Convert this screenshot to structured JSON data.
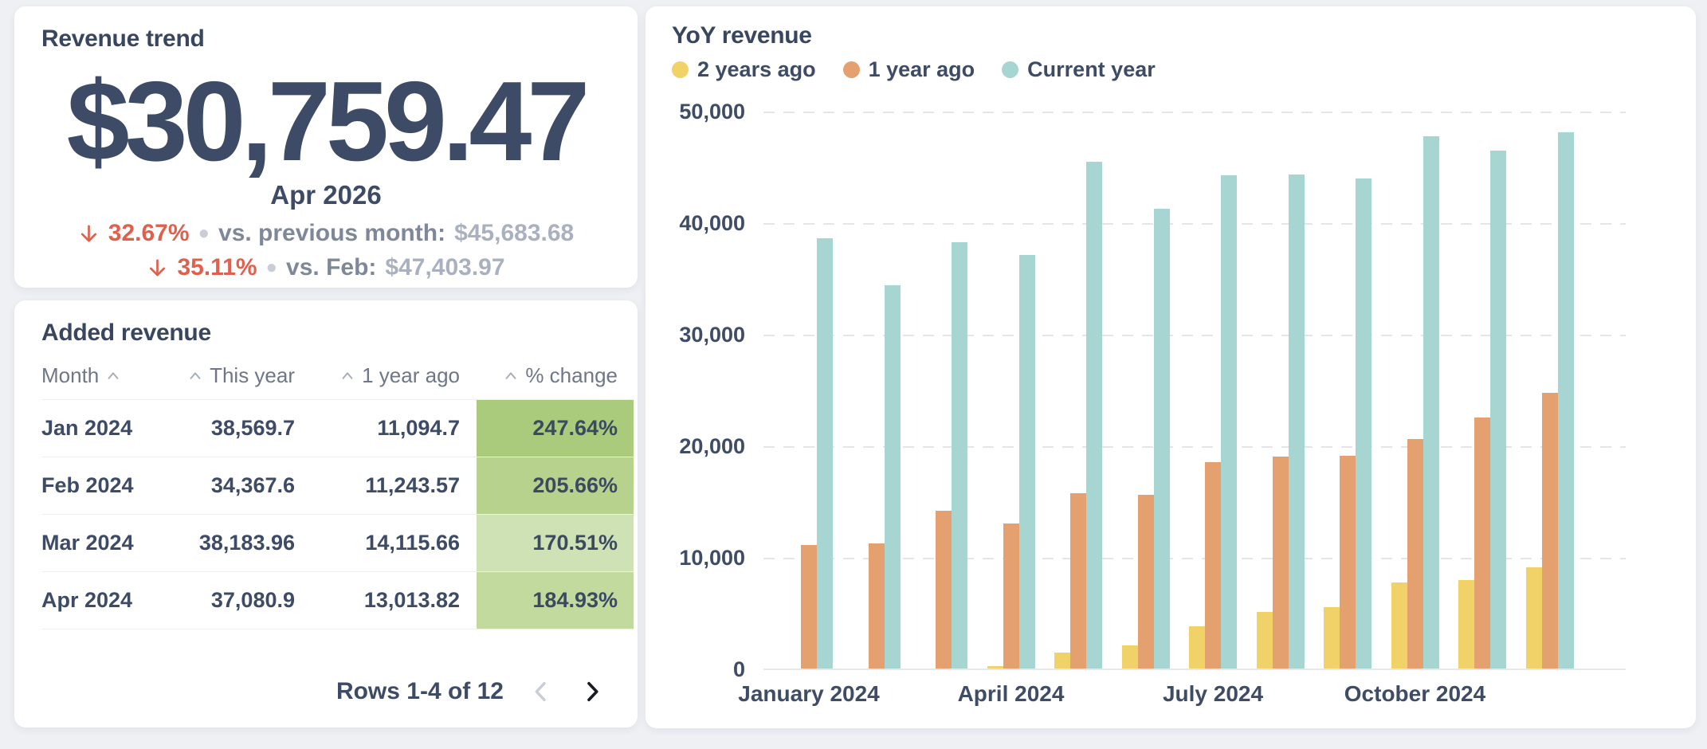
{
  "page_bg": "#eef0f4",
  "revenue_trend": {
    "title": "Revenue trend",
    "amount": "$30,759.47",
    "period": "Apr 2026",
    "down_arrow_color": "#e0604e",
    "comparisons": [
      {
        "direction": "down",
        "pct": "32.67%",
        "label": "vs. previous month:",
        "value": "$45,683.68"
      },
      {
        "direction": "down",
        "pct": "35.11%",
        "label": "vs. Feb:",
        "value": "$47,403.97"
      }
    ]
  },
  "added_revenue": {
    "title": "Added revenue",
    "columns": [
      {
        "label": "Month",
        "sortable": true
      },
      {
        "label": "This year",
        "sortable": true
      },
      {
        "label": "1 year ago",
        "sortable": true
      },
      {
        "label": "% change",
        "sortable": true
      }
    ],
    "rows": [
      {
        "month": "Jan 2024",
        "this_year": "38,569.7",
        "one_year_ago": "11,094.7",
        "pct_change": "247.64%",
        "pct_bg": "#a9cb7b"
      },
      {
        "month": "Feb 2024",
        "this_year": "34,367.6",
        "one_year_ago": "11,243.57",
        "pct_change": "205.66%",
        "pct_bg": "#b6d28d"
      },
      {
        "month": "Mar 2024",
        "this_year": "38,183.96",
        "one_year_ago": "14,115.66",
        "pct_change": "170.51%",
        "pct_bg": "#cfe2b5"
      },
      {
        "month": "Apr 2024",
        "this_year": "37,080.9",
        "one_year_ago": "13,013.82",
        "pct_change": "184.93%",
        "pct_bg": "#c3da9f"
      }
    ],
    "pagination": {
      "label": "Rows 1-4 of 12",
      "prev_enabled": false,
      "next_enabled": true,
      "prev_color": "#c9cdd5",
      "next_color": "#181b22"
    }
  },
  "chart_data": {
    "type": "bar",
    "title": "YoY revenue",
    "categories": [
      "Jan 2024",
      "Feb 2024",
      "Mar 2024",
      "Apr 2024",
      "May 2024",
      "Jun 2024",
      "Jul 2024",
      "Aug 2024",
      "Sep 2024",
      "Oct 2024",
      "Nov 2024",
      "Dec 2024"
    ],
    "series": [
      {
        "name": "2 years ago",
        "color": "#f0d269",
        "values": [
          0,
          0,
          0,
          250,
          1400,
          2100,
          3800,
          5100,
          5500,
          7700,
          7900,
          9100
        ]
      },
      {
        "name": "1 year ago",
        "color": "#e4a16f",
        "values": [
          11094.7,
          11243.57,
          14115.66,
          13013.82,
          15700,
          15600,
          18500,
          19000,
          19100,
          20600,
          22500,
          24700
        ]
      },
      {
        "name": "Current year",
        "color": "#a7d5d1",
        "values": [
          38569.7,
          34367.6,
          38183.96,
          37080.9,
          45400,
          41200,
          44200,
          44300,
          43900,
          47700,
          46400,
          48100
        ]
      }
    ],
    "ylim": [
      0,
      50000
    ],
    "yticks": [
      0,
      10000,
      20000,
      30000,
      40000,
      50000
    ],
    "x_ticks": [
      {
        "index": 0,
        "label": "January 2024"
      },
      {
        "index": 3,
        "label": "April 2024"
      },
      {
        "index": 6,
        "label": "July 2024"
      },
      {
        "index": 9,
        "label": "October 2024"
      }
    ],
    "grid": "horizontal-dashed",
    "legend_position": "top-left",
    "xlabel": "",
    "ylabel": ""
  }
}
